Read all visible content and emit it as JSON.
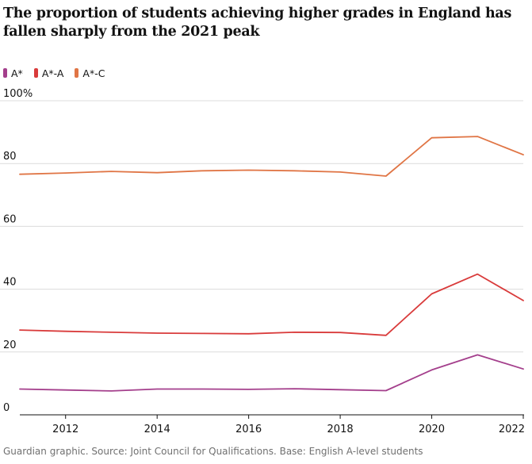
{
  "title": "The proportion of students achieving higher grades in England has fallen sharply from the 2021 peak",
  "source": "Guardian graphic. Source: Joint Council for Qualifications. Base: English A-level students",
  "colors": {
    "A*": "#a43f8c",
    "A*-A": "#d93b3b",
    "A*-C": "#e07545",
    "grid": "#dcdcdc",
    "axis": "#121212",
    "text": "#121212"
  },
  "chart_data": {
    "type": "line",
    "x": [
      2011,
      2012,
      2013,
      2014,
      2015,
      2016,
      2017,
      2018,
      2019,
      2020,
      2021,
      2022
    ],
    "series": [
      {
        "name": "A*",
        "colorKey": "A*",
        "values": [
          8.2,
          7.9,
          7.6,
          8.2,
          8.2,
          8.1,
          8.3,
          8.0,
          7.7,
          14.3,
          19.1,
          14.6
        ]
      },
      {
        "name": "A*-A",
        "colorKey": "A*-A",
        "values": [
          27.0,
          26.6,
          26.3,
          26.0,
          25.9,
          25.8,
          26.3,
          26.2,
          25.3,
          38.5,
          44.8,
          36.4
        ]
      },
      {
        "name": "A*-C",
        "colorKey": "A*-C",
        "values": [
          76.6,
          77.0,
          77.5,
          77.1,
          77.7,
          77.9,
          77.7,
          77.3,
          76.0,
          88.2,
          88.6,
          82.8
        ]
      }
    ],
    "ylim": [
      0,
      100
    ],
    "xlim": [
      2011,
      2022
    ],
    "y_ticks": [
      {
        "value": 0,
        "label": "0"
      },
      {
        "value": 20,
        "label": "20"
      },
      {
        "value": 40,
        "label": "40"
      },
      {
        "value": 60,
        "label": "60"
      },
      {
        "value": 80,
        "label": "80"
      },
      {
        "value": 100,
        "label": "100%"
      }
    ],
    "x_ticks": [
      {
        "value": 2012,
        "label": "2012"
      },
      {
        "value": 2014,
        "label": "2014"
      },
      {
        "value": 2016,
        "label": "2016"
      },
      {
        "value": 2018,
        "label": "2018"
      },
      {
        "value": 2020,
        "label": "2020"
      },
      {
        "value": 2022,
        "label": "2022"
      }
    ],
    "legend": [
      "A*",
      "A*-A",
      "A*-C"
    ],
    "legend_position": "top-left",
    "grid": true
  }
}
